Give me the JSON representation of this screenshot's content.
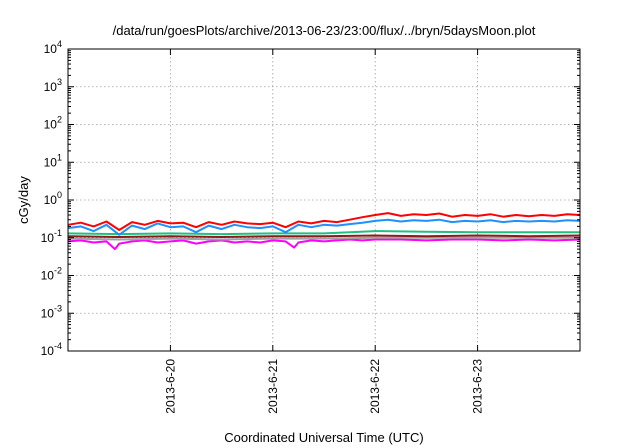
{
  "chart_data": {
    "type": "line",
    "title": "/data/run/goesPlots/archive/2013-06-23/23:00/flux/../bryn/5daysMoon.plot",
    "xlabel": "Coordinated Universal Time (UTC)",
    "ylabel": "cGy/day",
    "yscale": "log",
    "ylim": [
      0.0001,
      10000
    ],
    "xlim": [
      "2013-06-19 00:00",
      "2013-06-24 00:00"
    ],
    "grid": true,
    "x_ticks": [
      "2013-6-20",
      "2013-6-21",
      "2013-6-22",
      "2013-6-23"
    ],
    "y_ticks": [
      {
        "base": "10",
        "exp": "4",
        "value": 10000
      },
      {
        "base": "10",
        "exp": "3",
        "value": 1000
      },
      {
        "base": "10",
        "exp": "2",
        "value": 100
      },
      {
        "base": "10",
        "exp": "1",
        "value": 10
      },
      {
        "base": "10",
        "exp": "0",
        "value": 1
      },
      {
        "base": "10",
        "exp": "-1",
        "value": 0.1
      },
      {
        "base": "10",
        "exp": "-2",
        "value": 0.01
      },
      {
        "base": "10",
        "exp": "-3",
        "value": 0.001
      },
      {
        "base": "10",
        "exp": "-4",
        "value": 0.0001
      }
    ],
    "series": [
      {
        "color": "#ff00ff",
        "x": [
          "2013-06-19 00:00",
          "2013-06-19 03:00",
          "2013-06-19 06:00",
          "2013-06-19 09:00",
          "2013-06-19 11:00",
          "2013-06-19 12:00",
          "2013-06-19 15:00",
          "2013-06-19 18:00",
          "2013-06-19 21:00",
          "2013-06-20 00:00",
          "2013-06-20 03:00",
          "2013-06-20 06:00",
          "2013-06-20 09:00",
          "2013-06-20 12:00",
          "2013-06-20 15:00",
          "2013-06-20 18:00",
          "2013-06-20 21:00",
          "2013-06-21 00:00",
          "2013-06-21 03:00",
          "2013-06-21 05:00",
          "2013-06-21 06:00",
          "2013-06-21 09:00",
          "2013-06-21 12:00",
          "2013-06-21 15:00",
          "2013-06-21 18:00",
          "2013-06-21 21:00",
          "2013-06-22 00:00",
          "2013-06-22 06:00",
          "2013-06-22 12:00",
          "2013-06-22 18:00",
          "2013-06-23 00:00",
          "2013-06-23 06:00",
          "2013-06-23 12:00",
          "2013-06-23 18:00",
          "2013-06-24 00:00"
        ],
        "values": [
          0.08,
          0.085,
          0.075,
          0.08,
          0.05,
          0.07,
          0.08,
          0.085,
          0.075,
          0.08,
          0.085,
          0.07,
          0.08,
          0.085,
          0.075,
          0.08,
          0.075,
          0.085,
          0.08,
          0.055,
          0.075,
          0.085,
          0.08,
          0.085,
          0.09,
          0.085,
          0.09,
          0.09,
          0.085,
          0.09,
          0.09,
          0.085,
          0.09,
          0.085,
          0.09
        ]
      },
      {
        "color": "#a0a0a0",
        "x": [
          "2013-06-19 00:00",
          "2013-06-19 12:00",
          "2013-06-20 00:00",
          "2013-06-20 12:00",
          "2013-06-21 00:00",
          "2013-06-21 12:00",
          "2013-06-22 00:00",
          "2013-06-22 12:00",
          "2013-06-23 00:00",
          "2013-06-23 12:00",
          "2013-06-24 00:00"
        ],
        "values": [
          0.095,
          0.09,
          0.095,
          0.09,
          0.095,
          0.095,
          0.1,
          0.1,
          0.1,
          0.1,
          0.1
        ]
      },
      {
        "color": "#8b1a1a",
        "x": [
          "2013-06-19 00:00",
          "2013-06-19 12:00",
          "2013-06-20 00:00",
          "2013-06-20 12:00",
          "2013-06-21 00:00",
          "2013-06-21 12:00",
          "2013-06-22 00:00",
          "2013-06-22 12:00",
          "2013-06-23 00:00",
          "2013-06-23 12:00",
          "2013-06-24 00:00"
        ],
        "values": [
          0.11,
          0.105,
          0.11,
          0.105,
          0.11,
          0.11,
          0.115,
          0.11,
          0.115,
          0.11,
          0.115
        ]
      },
      {
        "color": "#20c080",
        "x": [
          "2013-06-19 00:00",
          "2013-06-19 12:00",
          "2013-06-20 00:00",
          "2013-06-20 12:00",
          "2013-06-21 00:00",
          "2013-06-21 12:00",
          "2013-06-22 00:00",
          "2013-06-22 12:00",
          "2013-06-23 00:00",
          "2013-06-23 12:00",
          "2013-06-24 00:00"
        ],
        "values": [
          0.13,
          0.125,
          0.13,
          0.125,
          0.13,
          0.13,
          0.15,
          0.145,
          0.14,
          0.14,
          0.14
        ]
      },
      {
        "color": "#ff0000",
        "x": [
          "2013-06-19 00:00",
          "2013-06-19 03:00",
          "2013-06-19 06:00",
          "2013-06-19 09:00",
          "2013-06-19 12:00",
          "2013-06-19 15:00",
          "2013-06-19 18:00",
          "2013-06-19 21:00",
          "2013-06-20 00:00",
          "2013-06-20 03:00",
          "2013-06-20 06:00",
          "2013-06-20 09:00",
          "2013-06-20 12:00",
          "2013-06-20 15:00",
          "2013-06-20 18:00",
          "2013-06-20 21:00",
          "2013-06-21 00:00",
          "2013-06-21 03:00",
          "2013-06-21 06:00",
          "2013-06-21 09:00",
          "2013-06-21 12:00",
          "2013-06-21 15:00",
          "2013-06-21 18:00",
          "2013-06-21 21:00",
          "2013-06-22 00:00",
          "2013-06-22 03:00",
          "2013-06-22 06:00",
          "2013-06-22 09:00",
          "2013-06-22 12:00",
          "2013-06-22 15:00",
          "2013-06-22 18:00",
          "2013-06-22 21:00",
          "2013-06-23 00:00",
          "2013-06-23 03:00",
          "2013-06-23 06:00",
          "2013-06-23 09:00",
          "2013-06-23 12:00",
          "2013-06-23 15:00",
          "2013-06-23 18:00",
          "2013-06-23 21:00",
          "2013-06-24 00:00"
        ],
        "values": [
          0.22,
          0.25,
          0.2,
          0.27,
          0.16,
          0.26,
          0.22,
          0.28,
          0.24,
          0.25,
          0.19,
          0.26,
          0.22,
          0.27,
          0.24,
          0.23,
          0.25,
          0.19,
          0.27,
          0.24,
          0.28,
          0.26,
          0.3,
          0.35,
          0.4,
          0.45,
          0.38,
          0.42,
          0.4,
          0.44,
          0.36,
          0.4,
          0.38,
          0.42,
          0.36,
          0.4,
          0.37,
          0.4,
          0.38,
          0.42,
          0.4
        ]
      },
      {
        "color": "#1e90ff",
        "x": [
          "2013-06-19 00:00",
          "2013-06-19 03:00",
          "2013-06-19 06:00",
          "2013-06-19 09:00",
          "2013-06-19 12:00",
          "2013-06-19 15:00",
          "2013-06-19 18:00",
          "2013-06-19 21:00",
          "2013-06-20 00:00",
          "2013-06-20 03:00",
          "2013-06-20 06:00",
          "2013-06-20 09:00",
          "2013-06-20 12:00",
          "2013-06-20 15:00",
          "2013-06-20 18:00",
          "2013-06-20 21:00",
          "2013-06-21 00:00",
          "2013-06-21 03:00",
          "2013-06-21 06:00",
          "2013-06-21 09:00",
          "2013-06-21 12:00",
          "2013-06-21 15:00",
          "2013-06-21 18:00",
          "2013-06-21 21:00",
          "2013-06-22 00:00",
          "2013-06-22 03:00",
          "2013-06-22 06:00",
          "2013-06-22 09:00",
          "2013-06-22 12:00",
          "2013-06-22 15:00",
          "2013-06-22 18:00",
          "2013-06-22 21:00",
          "2013-06-23 00:00",
          "2013-06-23 03:00",
          "2013-06-23 06:00",
          "2013-06-23 09:00",
          "2013-06-23 12:00",
          "2013-06-23 15:00",
          "2013-06-23 18:00",
          "2013-06-23 21:00",
          "2013-06-24 00:00"
        ],
        "values": [
          0.18,
          0.2,
          0.15,
          0.22,
          0.12,
          0.21,
          0.17,
          0.24,
          0.19,
          0.2,
          0.14,
          0.21,
          0.17,
          0.22,
          0.19,
          0.18,
          0.2,
          0.14,
          0.22,
          0.19,
          0.22,
          0.21,
          0.23,
          0.25,
          0.28,
          0.3,
          0.27,
          0.29,
          0.28,
          0.3,
          0.26,
          0.28,
          0.27,
          0.29,
          0.26,
          0.28,
          0.27,
          0.28,
          0.27,
          0.29,
          0.28
        ]
      }
    ]
  }
}
